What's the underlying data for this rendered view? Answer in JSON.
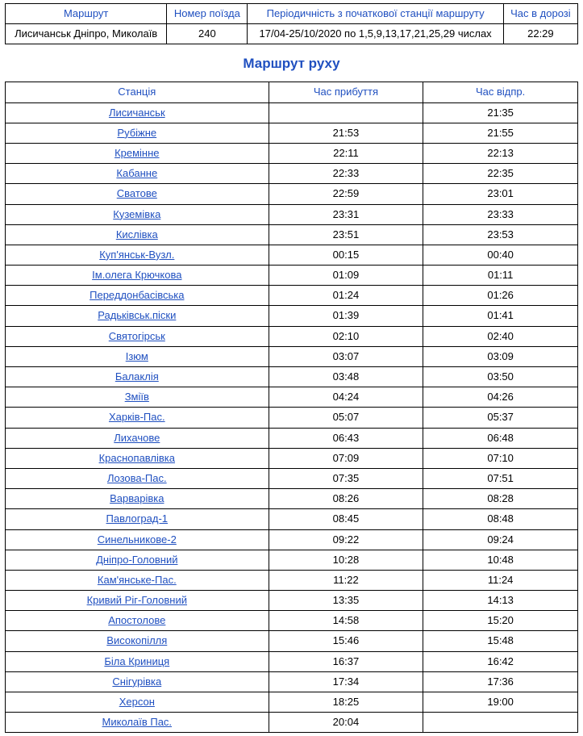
{
  "colors": {
    "link": "#2050c0",
    "border": "#000000",
    "background": "#ffffff",
    "text": "#000000"
  },
  "summary": {
    "headers": {
      "route": "Маршрут",
      "train_no": "Номер поїзда",
      "periodicity": "Періодичність з початкової станції маршруту",
      "duration": "Час в дорозі"
    },
    "values": {
      "route": "Лисичанськ Дніпро, Миколаїв",
      "train_no": "240",
      "periodicity": "17/04-25/10/2020 по 1,5,9,13,17,21,25,29 числах",
      "duration": "22:29"
    }
  },
  "schedule": {
    "title": "Маршрут руху",
    "headers": {
      "station": "Станція",
      "arrival": "Час прибуття",
      "departure": "Час відпр."
    },
    "rows": [
      {
        "station": "Лисичанськ",
        "arr": "",
        "dep": "21:35"
      },
      {
        "station": "Рубіжне",
        "arr": "21:53",
        "dep": "21:55"
      },
      {
        "station": "Кремінне",
        "arr": "22:11",
        "dep": "22:13"
      },
      {
        "station": "Кабанне",
        "arr": "22:33",
        "dep": "22:35"
      },
      {
        "station": "Сватове",
        "arr": "22:59",
        "dep": "23:01"
      },
      {
        "station": "Куземівка",
        "arr": "23:31",
        "dep": "23:33"
      },
      {
        "station": "Кислівка",
        "arr": "23:51",
        "dep": "23:53"
      },
      {
        "station": "Куп'янськ-Вузл.",
        "arr": "00:15",
        "dep": "00:40"
      },
      {
        "station": "Ім.олега Крючкова",
        "arr": "01:09",
        "dep": "01:11"
      },
      {
        "station": "Переддонбасівська",
        "arr": "01:24",
        "dep": "01:26"
      },
      {
        "station": "Радьківськ.піски",
        "arr": "01:39",
        "dep": "01:41"
      },
      {
        "station": "Святогірськ",
        "arr": "02:10",
        "dep": "02:40"
      },
      {
        "station": "Ізюм",
        "arr": "03:07",
        "dep": "03:09"
      },
      {
        "station": "Балаклія",
        "arr": "03:48",
        "dep": "03:50"
      },
      {
        "station": "Зміїв",
        "arr": "04:24",
        "dep": "04:26"
      },
      {
        "station": "Харків-Пас.",
        "arr": "05:07",
        "dep": "05:37"
      },
      {
        "station": "Лихачове",
        "arr": "06:43",
        "dep": "06:48"
      },
      {
        "station": "Краснопавлівка",
        "arr": "07:09",
        "dep": "07:10"
      },
      {
        "station": "Лозова-Пас.",
        "arr": "07:35",
        "dep": "07:51"
      },
      {
        "station": "Варварівка",
        "arr": "08:26",
        "dep": "08:28"
      },
      {
        "station": "Павлоград-1",
        "arr": "08:45",
        "dep": "08:48"
      },
      {
        "station": "Синельникове-2",
        "arr": "09:22",
        "dep": "09:24"
      },
      {
        "station": "Дніпро-Головний",
        "arr": "10:28",
        "dep": "10:48"
      },
      {
        "station": "Кам'янське-Пас.",
        "arr": "11:22",
        "dep": "11:24"
      },
      {
        "station": "Кривий Ріг-Головний",
        "arr": "13:35",
        "dep": "14:13"
      },
      {
        "station": "Апостолове",
        "arr": "14:58",
        "dep": "15:20"
      },
      {
        "station": "Високопілля",
        "arr": "15:46",
        "dep": "15:48"
      },
      {
        "station": "Біла Криниця",
        "arr": "16:37",
        "dep": "16:42"
      },
      {
        "station": "Снігурівка",
        "arr": "17:34",
        "dep": "17:36"
      },
      {
        "station": "Херсон",
        "arr": "18:25",
        "dep": "19:00"
      },
      {
        "station": "Миколаїв Пас.",
        "arr": "20:04",
        "dep": ""
      }
    ]
  }
}
